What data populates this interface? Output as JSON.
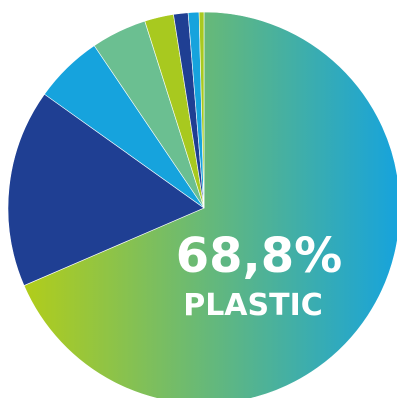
{
  "chart_data": {
    "type": "pie",
    "title": "",
    "slices": [
      {
        "value": 68.8,
        "label": "PLASTIC",
        "value_label": "68,8%",
        "color": "gradient"
      },
      {
        "value": 16.4,
        "color": "#1f3f93"
      },
      {
        "value": 5.7,
        "color": "#16a3dd"
      },
      {
        "value": 4.6,
        "color": "#6bbf91"
      },
      {
        "value": 2.4,
        "color": "#a8c91f"
      },
      {
        "value": 1.2,
        "color": "#1f3f93"
      },
      {
        "value": 0.9,
        "color": "#16a3dd"
      },
      {
        "value": 0.4,
        "color": "#a8c91f"
      }
    ],
    "gradient_colors": [
      "#b2cd1a",
      "#16a3dd"
    ],
    "start_angle_deg": 0,
    "direction": "clockwise-from-top",
    "legend": "none",
    "grid": false
  }
}
